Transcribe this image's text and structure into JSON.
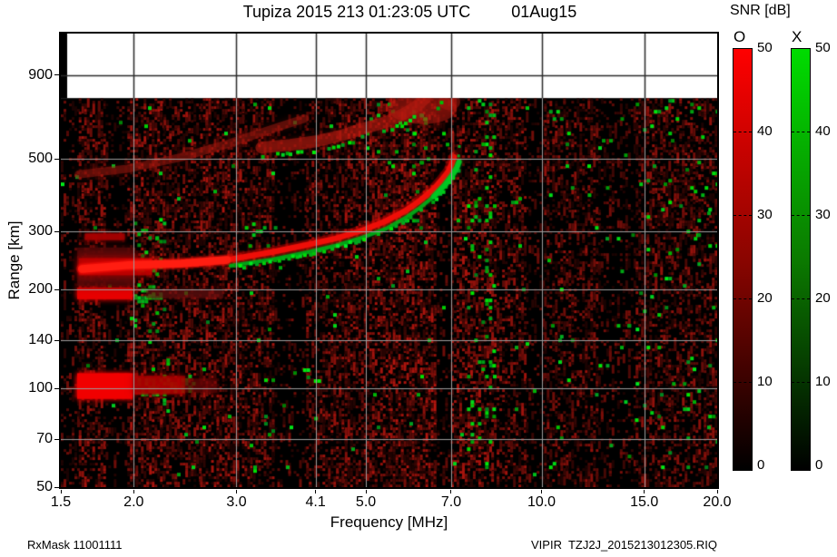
{
  "title": {
    "text": "Tupiza 2015 213 01:23:05 UTC",
    "date": "01Aug15"
  },
  "snr_panel": {
    "title": "SNR [dB]",
    "o_label": "O",
    "x_label": "X",
    "tick_labels": [
      "50",
      "40",
      "30",
      "20",
      "10",
      "0"
    ],
    "o_top_color": "#ff0000",
    "o_mid_color": "#8a0500",
    "x_top_color": "#00dc00",
    "x_mid_color": "#0b7a00",
    "bottom_color": "#000000",
    "min_db": 0,
    "max_db": 50
  },
  "axes": {
    "x_label": "Frequency [MHz]",
    "y_label": "Range [km]",
    "x_ticks": [
      1.5,
      2.0,
      3.0,
      4.1,
      5.0,
      7.0,
      10.0,
      15.0,
      20.0
    ],
    "x_tick_labels": [
      "1.5",
      "2.0",
      "3.0",
      "4.1",
      "5.0",
      "7.0",
      "10.0",
      "15.0",
      "20.0"
    ],
    "y_ticks": [
      900,
      500,
      300,
      200,
      140,
      100,
      70,
      50
    ],
    "y_tick_labels": [
      "900",
      "500",
      "300",
      "200",
      "140",
      "100",
      "70",
      "50"
    ],
    "x_grid": [
      2.0,
      3.0,
      4.1,
      5.0,
      7.0,
      10.0,
      15.0
    ],
    "y_grid": [
      900,
      500,
      300,
      200,
      140,
      100,
      70
    ]
  },
  "footer": {
    "left": "RxMask 11001111",
    "right": "VIPIR  TZJ2J_2015213012305.RIQ"
  },
  "chart_data": {
    "type": "heatmap",
    "title": "Tupiza 2015 213 01:23:05 UTC 01Aug15",
    "station": "Tupiza",
    "instrument": "VIPIR",
    "xlabel": "Frequency [MHz]",
    "ylabel": "Range [km]",
    "x_scale": "log",
    "y_scale": "log",
    "x_range_mhz": [
      1.5,
      20.0
    ],
    "y_range_km": [
      50,
      1200
    ],
    "data_top_km": 765,
    "colorbar": {
      "label": "SNR [dB]",
      "range_db": [
        0,
        50
      ],
      "o_polarization": "red",
      "x_polarization": "green"
    },
    "critical_frequency_o_mhz": 7.1,
    "o_trace_f_km": [
      [
        1.63,
        231
      ],
      [
        1.95,
        237
      ],
      [
        2.41,
        240
      ],
      [
        2.89,
        246
      ],
      [
        3.46,
        260
      ],
      [
        3.99,
        274
      ],
      [
        4.44,
        286
      ],
      [
        4.94,
        303
      ],
      [
        5.41,
        323
      ],
      [
        5.84,
        347
      ],
      [
        6.18,
        372
      ],
      [
        6.52,
        403
      ],
      [
        6.75,
        432
      ],
      [
        6.92,
        457
      ],
      [
        7.03,
        487
      ],
      [
        7.08,
        506
      ]
    ],
    "x_trace_f_km": [
      [
        2.93,
        236
      ],
      [
        3.46,
        247
      ],
      [
        3.99,
        260
      ],
      [
        4.44,
        272
      ],
      [
        4.94,
        288
      ],
      [
        5.41,
        306
      ],
      [
        5.84,
        330
      ],
      [
        6.18,
        354
      ],
      [
        6.54,
        384
      ],
      [
        6.82,
        415
      ],
      [
        7.03,
        445
      ],
      [
        7.15,
        468
      ],
      [
        7.22,
        489
      ]
    ],
    "second_hop_green_f_km": [
      [
        3.31,
        516
      ],
      [
        3.71,
        526
      ],
      [
        4.11,
        538
      ],
      [
        4.56,
        561
      ],
      [
        4.98,
        590
      ],
      [
        5.41,
        614
      ],
      [
        5.8,
        650
      ],
      [
        6.1,
        686
      ],
      [
        6.32,
        727
      ]
    ],
    "second_hop_red_f_km": [
      [
        3.31,
        541
      ],
      [
        3.71,
        551
      ],
      [
        4.11,
        565
      ],
      [
        4.56,
        590
      ],
      [
        4.98,
        620
      ],
      [
        5.41,
        646
      ],
      [
        5.8,
        684
      ],
      [
        6.1,
        722
      ],
      [
        6.32,
        765
      ]
    ],
    "spread_band_f_km": [
      [
        1.61,
        448
      ],
      [
        1.95,
        466
      ],
      [
        2.41,
        505
      ],
      [
        2.89,
        554
      ],
      [
        3.46,
        617
      ],
      [
        3.93,
        663
      ]
    ],
    "e_layer_echo": {
      "f_mhz": [
        1.6,
        2.78
      ],
      "km": [
        93,
        111
      ]
    },
    "echo_200km": {
      "f_mhz": [
        1.6,
        2.85
      ],
      "km": [
        187,
        202
      ]
    },
    "echo_290km": {
      "f_mhz": [
        1.65,
        1.93
      ],
      "km": [
        283,
        296
      ]
    }
  },
  "render": {
    "seed": 12345,
    "o_trace_color": "rgba(240,15,8,0.95)",
    "x_trace_color": "rgba(0,180,25,0.8)",
    "noise_bands": [
      [
        1.5,
        1.61,
        0.2,
        100
      ],
      [
        1.61,
        1.79,
        0.45,
        140
      ],
      [
        1.79,
        1.95,
        0.16,
        95
      ],
      [
        1.95,
        2.25,
        0.5,
        150
      ],
      [
        2.25,
        2.6,
        0.4,
        135
      ],
      [
        2.6,
        3.0,
        0.48,
        150
      ],
      [
        3.0,
        3.45,
        0.42,
        140
      ],
      [
        3.45,
        3.95,
        0.17,
        100
      ],
      [
        3.95,
        4.6,
        0.4,
        135
      ],
      [
        4.6,
        5.5,
        0.5,
        150
      ],
      [
        5.5,
        6.55,
        0.55,
        160
      ],
      [
        6.55,
        7.0,
        0.2,
        100
      ],
      [
        7.0,
        8.2,
        0.5,
        150
      ],
      [
        8.2,
        9.4,
        0.42,
        140
      ],
      [
        9.4,
        10.1,
        0.16,
        90
      ],
      [
        10.1,
        12.5,
        0.38,
        125
      ],
      [
        12.5,
        14.5,
        0.2,
        100
      ],
      [
        14.5,
        20.0,
        0.4,
        125
      ]
    ],
    "green_zones": [
      [
        1.5,
        20.0,
        55,
        760,
        0.006
      ],
      [
        2.0,
        2.27,
        190,
        330,
        0.1
      ],
      [
        2.0,
        2.3,
        80,
        190,
        0.03
      ],
      [
        2.03,
        2.52,
        95,
        110,
        0.5
      ],
      [
        2.0,
        2.22,
        185,
        206,
        0.5
      ],
      [
        3.9,
        4.15,
        106,
        121,
        0.2
      ],
      [
        3.85,
        4.12,
        74,
        93,
        0.07
      ],
      [
        3.1,
        3.5,
        273,
        320,
        0.22
      ],
      [
        6.0,
        6.36,
        300,
        740,
        0.07
      ],
      [
        7.45,
        8.3,
        55,
        760,
        0.1
      ],
      [
        10.3,
        11.3,
        55,
        760,
        0.025
      ],
      [
        12.0,
        14.5,
        55,
        760,
        0.012
      ],
      [
        14.5,
        20.0,
        55,
        760,
        0.03
      ],
      [
        5.0,
        6.9,
        480,
        740,
        0.03
      ]
    ],
    "red_blobs": [
      [
        1.6,
        1.99,
        93,
        111,
        "#f00000",
        0.95,
        6
      ],
      [
        1.99,
        2.45,
        96,
        109,
        "#b00000",
        0.5,
        6
      ],
      [
        2.45,
        2.78,
        97,
        107,
        "#700808",
        0.3,
        6
      ],
      [
        1.6,
        1.99,
        187,
        202,
        "#e80000",
        0.85,
        6
      ],
      [
        2.1,
        2.85,
        188,
        200,
        "#6a0f0f",
        0.3,
        6
      ],
      [
        1.65,
        1.93,
        283,
        296,
        "#a80000",
        0.6,
        5
      ],
      [
        1.6,
        2.0,
        205,
        268,
        "#580c0c",
        0.45,
        8
      ],
      [
        1.61,
        2.15,
        221,
        249,
        "#c80000",
        0.5,
        8
      ]
    ],
    "wedges": [
      [
        6.25,
        710,
        38,
        17,
        "rgba(180,25,15,0.5)"
      ],
      [
        6.95,
        745,
        12,
        9,
        "rgba(180,25,15,0.45)"
      ]
    ],
    "green_arc_extra": [
      [
        6.62,
        725
      ],
      [
        6.72,
        745
      ],
      [
        6.8,
        760
      ]
    ],
    "cusp_line": [
      [
        7.06,
        494
      ],
      [
        7.06,
        600
      ]
    ],
    "cusp_dots": [
      [
        7.14,
        480
      ],
      [
        7.17,
        515
      ],
      [
        7.19,
        550
      ]
    ]
  }
}
